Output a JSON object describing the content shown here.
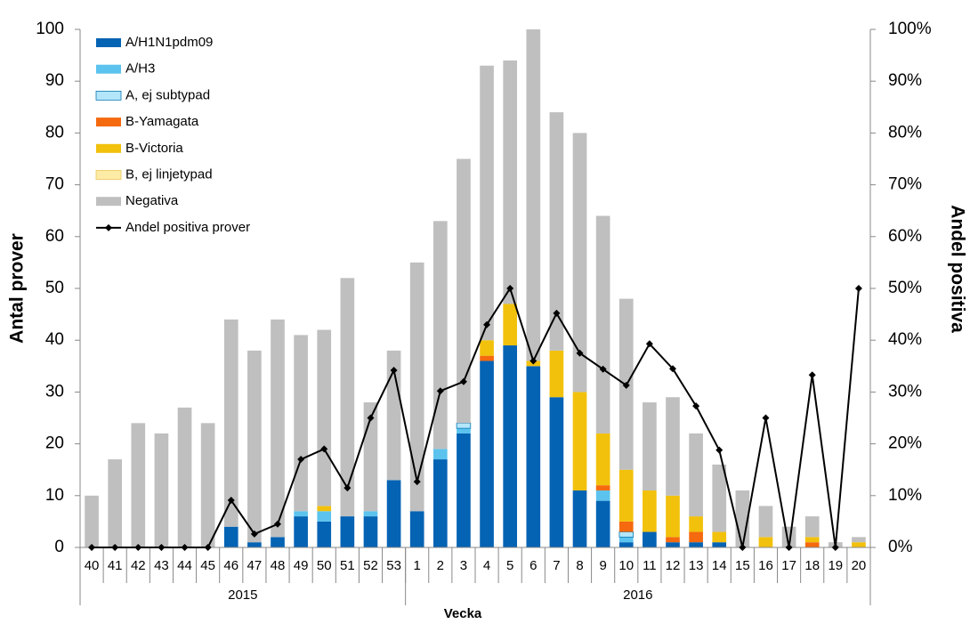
{
  "chart_data": {
    "type": "bar",
    "stacked": true,
    "y_label": "Antal prover",
    "y2_label": "Andel positiva",
    "x_label": "Vecka",
    "categories": [
      "40",
      "41",
      "42",
      "43",
      "44",
      "45",
      "46",
      "47",
      "48",
      "49",
      "50",
      "51",
      "52",
      "53",
      "1",
      "2",
      "3",
      "4",
      "5",
      "6",
      "7",
      "8",
      "9",
      "10",
      "11",
      "12",
      "13",
      "14",
      "15",
      "16",
      "17",
      "18",
      "19",
      "20"
    ],
    "groups": [
      {
        "name": "2015",
        "count": 14
      },
      {
        "name": "2016",
        "count": 20
      }
    ],
    "ylim": [
      0,
      100
    ],
    "yticks": [
      0,
      10,
      20,
      30,
      40,
      50,
      60,
      70,
      80,
      90,
      100
    ],
    "y2lim": [
      0,
      100
    ],
    "y2ticks": [
      {
        "value": 0,
        "label": "0%"
      },
      {
        "value": 10,
        "label": "10%"
      },
      {
        "value": 20,
        "label": "20%"
      },
      {
        "value": 30,
        "label": "30%"
      },
      {
        "value": 40,
        "label": "40%"
      },
      {
        "value": 50,
        "label": "50%"
      },
      {
        "value": 60,
        "label": "60%"
      },
      {
        "value": 70,
        "label": "70%"
      },
      {
        "value": 80,
        "label": "80%"
      },
      {
        "value": 90,
        "label": "90%"
      },
      {
        "value": 100,
        "label": "100%"
      }
    ],
    "legend": "top-left",
    "series": [
      {
        "name": "A/H1N1pdm09",
        "color": "#0563b4",
        "values": [
          0,
          0,
          0,
          0,
          0,
          0,
          4,
          1,
          2,
          6,
          5,
          6,
          6,
          13,
          7,
          17,
          22,
          36,
          39,
          35,
          29,
          11,
          9,
          1,
          3,
          1,
          1,
          1,
          0,
          0,
          0,
          0,
          0,
          0
        ]
      },
      {
        "name": "A/H3",
        "color": "#5bc3ee",
        "values": [
          0,
          0,
          0,
          0,
          0,
          0,
          0,
          0,
          0,
          1,
          2,
          0,
          1,
          0,
          0,
          2,
          1,
          0,
          0,
          0,
          0,
          0,
          2,
          1,
          0,
          0,
          0,
          0,
          0,
          0,
          0,
          0,
          0,
          0
        ]
      },
      {
        "name": "A, ej subtypad",
        "color": "#b4e6fa",
        "values": [
          0,
          0,
          0,
          0,
          0,
          0,
          0,
          0,
          0,
          0,
          0,
          0,
          0,
          0,
          0,
          0,
          1,
          0,
          0,
          0,
          0,
          0,
          0,
          1,
          0,
          0,
          0,
          0,
          0,
          0,
          0,
          0,
          0,
          0
        ]
      },
      {
        "name": "B-Yamagata",
        "color": "#f5690f",
        "values": [
          0,
          0,
          0,
          0,
          0,
          0,
          0,
          0,
          0,
          0,
          0,
          0,
          0,
          0,
          0,
          0,
          0,
          1,
          0,
          0,
          0,
          0,
          1,
          2,
          0,
          1,
          2,
          0,
          0,
          0,
          0,
          1,
          0,
          0
        ]
      },
      {
        "name": "B-Victoria",
        "color": "#f2c10c",
        "values": [
          0,
          0,
          0,
          0,
          0,
          0,
          0,
          0,
          0,
          0,
          1,
          0,
          0,
          0,
          0,
          0,
          0,
          3,
          8,
          1,
          9,
          19,
          10,
          10,
          8,
          8,
          3,
          2,
          0,
          2,
          0,
          1,
          0,
          1
        ]
      },
      {
        "name": "B, ej linjetypad",
        "color": "#fdeba6",
        "values": [
          0,
          0,
          0,
          0,
          0,
          0,
          0,
          0,
          0,
          0,
          0,
          0,
          0,
          0,
          0,
          0,
          0,
          0,
          0,
          0,
          0,
          0,
          0,
          0,
          0,
          0,
          0,
          0,
          0,
          0,
          0,
          0,
          0,
          0
        ]
      },
      {
        "name": "Negativa",
        "color": "#bfbfbf",
        "values": [
          10,
          17,
          24,
          22,
          27,
          24,
          40,
          37,
          42,
          34,
          34,
          46,
          21,
          25,
          48,
          44,
          51,
          53,
          47,
          64,
          46,
          50,
          42,
          33,
          17,
          19,
          16,
          13,
          11,
          6,
          4,
          4,
          1,
          1
        ]
      },
      {
        "name": "Andel positiva prover",
        "color": "#000000",
        "axis": "y2",
        "values": [
          0,
          0,
          0,
          0,
          0,
          0,
          9.1,
          2.6,
          4.5,
          17,
          19,
          11.5,
          25,
          34.2,
          12.7,
          30.2,
          32,
          43,
          50,
          36,
          45.2,
          37.5,
          34.4,
          31.3,
          39.3,
          34.5,
          27.3,
          18.8,
          0,
          25,
          0,
          33.3,
          0,
          50
        ]
      }
    ]
  }
}
